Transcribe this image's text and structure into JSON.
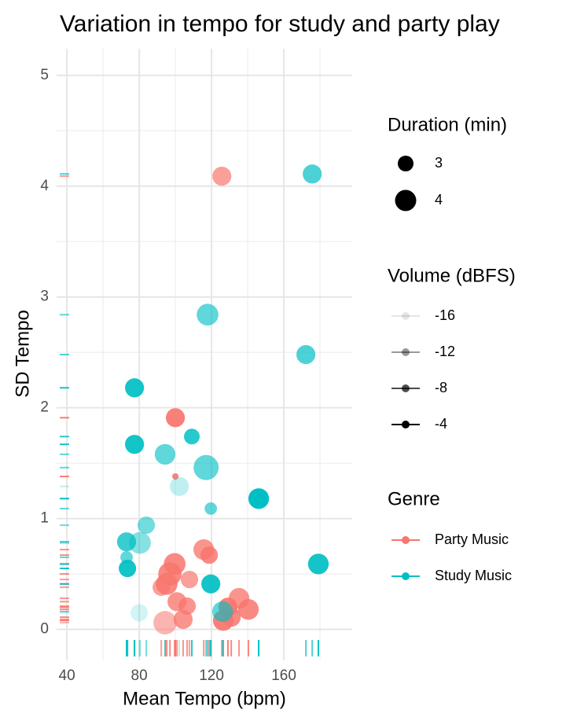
{
  "chart_data": {
    "type": "scatter",
    "title": "Variation in tempo for study and party play",
    "x_label": "Mean Tempo (bpm)",
    "y_label": "SD Tempo",
    "xlim": [
      34.3,
      197.8
    ],
    "ylim": [
      -0.28,
      5.24
    ],
    "xticks": [
      40,
      80,
      120,
      160
    ],
    "yticks": [
      0,
      1,
      2,
      3,
      4,
      5
    ],
    "xminor_ticks": [
      60,
      100,
      140,
      180
    ],
    "yminor_ticks": [
      0.5,
      1.5,
      2.5,
      3.5,
      4.5
    ],
    "grid": true,
    "rug": true,
    "size_legend": {
      "title": "Duration (min)",
      "values": [
        3,
        4
      ]
    },
    "alpha_legend": {
      "title": "Volume (dBFS)",
      "values": [
        -16,
        -12,
        -8,
        -4
      ]
    },
    "color_legend": {
      "title": "Genre"
    },
    "series": [
      {
        "name": "Party Music",
        "color": "#F8766D",
        "x": [
          125.7,
          100,
          100,
          99.6,
          115.7,
          118.7,
          97,
          95.2,
          92.2,
          107.8,
          100.9,
          106.5,
          104.3,
          94.3,
          135.2,
          140.4,
          129.1,
          126.5,
          130.9
        ],
        "values": [
          4.09,
          1.91,
          1.38,
          0.59,
          0.72,
          0.67,
          0.5,
          0.41,
          0.38,
          0.45,
          0.25,
          0.21,
          0.09,
          0.06,
          0.28,
          0.18,
          0.2,
          0.08,
          0.11
        ],
        "size": [
          3.6,
          3.6,
          1.3,
          4.1,
          3.9,
          3.3,
          4.4,
          4.1,
          3.3,
          3.3,
          3.6,
          3.3,
          3.6,
          4.4,
          3.9,
          3.9,
          3.6,
          3.9,
          3.6
        ],
        "volume": [
          -8,
          -5,
          -5,
          -6,
          -7,
          -6,
          -6,
          -6,
          -8,
          -8,
          -7,
          -7,
          -7,
          -10,
          -7,
          -6,
          -5,
          -5,
          -6
        ]
      },
      {
        "name": "Study Music",
        "color": "#00BFC4",
        "x": [
          175.7,
          117.8,
          172.2,
          77.4,
          109.1,
          77.4,
          94.3,
          117,
          102.2,
          146.1,
          119.6,
          83.9,
          73,
          80.4,
          73,
          73.5,
          179.1,
          119.6,
          80,
          126.1
        ],
        "values": [
          4.11,
          2.84,
          2.48,
          2.18,
          1.74,
          1.67,
          1.58,
          1.46,
          1.29,
          1.18,
          1.09,
          0.94,
          0.79,
          0.78,
          0.65,
          0.55,
          0.59,
          0.41,
          0.15,
          0.16
        ],
        "size": [
          3.6,
          4.1,
          3.6,
          3.6,
          3,
          3.6,
          3.9,
          4.7,
          3.6,
          3.9,
          2.4,
          3.3,
          3.6,
          4.1,
          2.4,
          3.3,
          3.9,
          3.6,
          3.3,
          3.9
        ],
        "volume": [
          -8,
          -9,
          -8,
          -5,
          -6,
          -5,
          -9,
          -9,
          -14,
          -4,
          -9,
          -10,
          -7,
          -11,
          -9,
          -5,
          -5,
          -5,
          -15,
          -9
        ]
      }
    ]
  }
}
